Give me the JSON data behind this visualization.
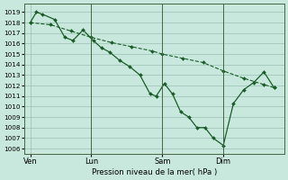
{
  "xlabel": "Pression niveau de la mer( hPa )",
  "background_color": "#c8e8de",
  "grid_color": "#9bbfb4",
  "line_color": "#1a5c28",
  "ylim_min": 1005.5,
  "ylim_max": 1019.8,
  "yticks": [
    1006,
    1007,
    1008,
    1009,
    1010,
    1011,
    1012,
    1013,
    1014,
    1015,
    1016,
    1017,
    1018,
    1019
  ],
  "day_labels": [
    "Ven",
    "Lun",
    "Sam",
    "Dim"
  ],
  "day_xticks": [
    0,
    3.0,
    6.5,
    9.5
  ],
  "day_vlines": [
    3.0,
    6.5,
    9.5
  ],
  "xlim_min": -0.3,
  "xlim_max": 12.5,
  "line1_x": [
    0,
    0.3,
    0.6,
    1.2,
    1.7,
    2.1,
    2.6,
    3.1,
    3.5,
    3.9,
    4.4,
    4.9,
    5.4,
    5.9,
    6.2,
    6.6,
    7.0,
    7.4,
    7.8,
    8.2,
    8.6,
    9.0,
    9.5,
    10.0,
    10.5,
    11.0,
    11.5,
    12.0
  ],
  "line1_y": [
    1018.0,
    1019.0,
    1018.8,
    1018.3,
    1016.6,
    1016.3,
    1017.3,
    1016.3,
    1015.6,
    1015.2,
    1014.4,
    1013.8,
    1013.0,
    1011.2,
    1011.0,
    1012.2,
    1011.2,
    1009.5,
    1009.0,
    1008.0,
    1008.0,
    1007.0,
    1006.3,
    1010.3,
    1011.6,
    1012.3,
    1013.3,
    1011.8
  ],
  "line2_x": [
    0,
    1.0,
    2.0,
    3.0,
    4.0,
    5.0,
    6.0,
    6.5,
    7.5,
    8.5,
    9.5,
    10.5,
    11.5,
    12.0
  ],
  "line2_y": [
    1018.0,
    1017.8,
    1017.2,
    1016.6,
    1016.1,
    1015.7,
    1015.3,
    1015.0,
    1014.6,
    1014.2,
    1013.4,
    1012.7,
    1012.1,
    1011.8
  ]
}
